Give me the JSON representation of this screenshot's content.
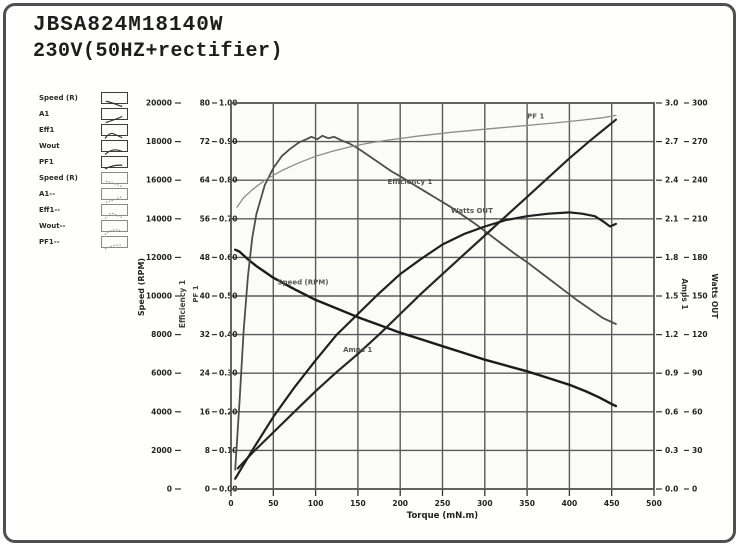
{
  "window": {
    "title_line1": "JBSA824M18140W",
    "title_line2": "230V(50HZ+rectifier)",
    "border_color": "#4f4f4f"
  },
  "legend": {
    "items": [
      {
        "label": "Speed (R)",
        "icon": "speed-curve-thumbnail",
        "dashed": false
      },
      {
        "label": "A1",
        "icon": "amps-curve-thumbnail",
        "dashed": false
      },
      {
        "label": "Eff1",
        "icon": "eff-curve-thumbnail",
        "dashed": false
      },
      {
        "label": "Wout",
        "icon": "watts-curve-thumbnail",
        "dashed": false
      },
      {
        "label": "PF1",
        "icon": "pf-curve-thumbnail",
        "dashed": false
      },
      {
        "label": "Speed (R)",
        "icon": "speed-curve-thumbnail",
        "dashed": true
      },
      {
        "label": "A1--",
        "icon": "amps-curve-thumbnail",
        "dashed": true
      },
      {
        "label": "Eff1--",
        "icon": "eff-curve-thumbnail",
        "dashed": true
      },
      {
        "label": "Wout--",
        "icon": "watts-curve-thumbnail",
        "dashed": true
      },
      {
        "label": "PF1--",
        "icon": "pf-curve-thumbnail",
        "dashed": true
      }
    ]
  },
  "chart_data": {
    "type": "line",
    "title": "",
    "xlabel": "Torque (mN.m)",
    "grid": true,
    "x_range": [
      0,
      500
    ],
    "x_ticks": [
      "0",
      "50",
      "100",
      "150",
      "200",
      "250",
      "300",
      "350",
      "400",
      "450",
      "500"
    ],
    "grid_color": "#5a5a5a",
    "plot_bg": "#fbfbf8",
    "axes": {
      "speed": {
        "title": "Speed (RPM)",
        "range": [
          0,
          20000
        ],
        "ticks": [
          "20000",
          "18000",
          "16000",
          "14000",
          "12000",
          "10000",
          "8000",
          "6000",
          "4000",
          "2000",
          "0"
        ]
      },
      "eff": {
        "title": "Efficiency 1",
        "range": [
          0,
          80
        ],
        "ticks": [
          "80",
          "72",
          "64",
          "56",
          "48",
          "40",
          "32",
          "24",
          "16",
          "8",
          "0"
        ]
      },
      "pf": {
        "title": "PF 1",
        "range": [
          0,
          1
        ],
        "ticks": [
          "1.00",
          "0.90",
          "0.80",
          "0.70",
          "0.60",
          "0.50",
          "0.40",
          "0.30",
          "0.20",
          "0.10",
          "0.00"
        ]
      },
      "amps": {
        "title": "Amps 1",
        "range": [
          0,
          3
        ],
        "ticks": [
          "3.0",
          "2.7",
          "2.4",
          "2.1",
          "1.8",
          "1.5",
          "1.2",
          "0.9",
          "0.6",
          "0.3",
          "0.0"
        ]
      },
      "watts": {
        "title": "Watts OUT",
        "range": [
          0,
          300
        ],
        "ticks": [
          "300",
          "270",
          "240",
          "210",
          "180",
          "150",
          "120",
          "90",
          "60",
          "30",
          "0"
        ]
      }
    },
    "series": [
      {
        "name": "Speed (RPM)",
        "axis": "speed",
        "color": "#1b1b1b",
        "width": 2.4,
        "x": [
          5,
          10,
          20,
          30,
          40,
          50,
          75,
          100,
          125,
          150,
          175,
          200,
          225,
          250,
          275,
          300,
          325,
          350,
          375,
          400,
          420,
          435,
          450,
          455
        ],
        "y": [
          12400,
          12300,
          11900,
          11550,
          11250,
          10950,
          10350,
          9800,
          9350,
          8900,
          8500,
          8100,
          7750,
          7400,
          7050,
          6700,
          6400,
          6100,
          5750,
          5400,
          5050,
          4750,
          4400,
          4300
        ]
      },
      {
        "name": "Efficiency 1",
        "axis": "eff",
        "color": "#4d4d4d",
        "width": 1.8,
        "x": [
          5,
          10,
          15,
          20,
          25,
          30,
          40,
          50,
          60,
          70,
          80,
          88,
          95,
          102,
          108,
          115,
          122,
          130,
          140,
          150,
          160,
          170,
          180,
          190,
          200,
          215,
          230,
          245,
          260,
          275,
          290,
          305,
          320,
          335,
          350,
          365,
          380,
          395,
          410,
          425,
          440,
          455
        ],
        "y": [
          4,
          18,
          33,
          44,
          52,
          57,
          63,
          66.5,
          69,
          70.5,
          71.8,
          72.4,
          73.0,
          72.5,
          73.2,
          72.7,
          73.0,
          72.3,
          71.6,
          70.6,
          69.4,
          68.2,
          67.0,
          65.8,
          64.8,
          63.2,
          61.6,
          60.0,
          58.4,
          56.6,
          54.8,
          52.8,
          50.8,
          48.8,
          47.0,
          45.0,
          43.0,
          41.0,
          39.0,
          37.2,
          35.4,
          34.2
        ]
      },
      {
        "name": "PF 1",
        "axis": "pf",
        "color": "#8c8c8c",
        "width": 1.3,
        "x": [
          7,
          15,
          25,
          40,
          60,
          80,
          100,
          120,
          140,
          160,
          180,
          200,
          220,
          240,
          260,
          280,
          300,
          320,
          340,
          360,
          380,
          400,
          420,
          440,
          455
        ],
        "y": [
          0.73,
          0.755,
          0.775,
          0.8,
          0.825,
          0.845,
          0.862,
          0.875,
          0.886,
          0.895,
          0.902,
          0.908,
          0.914,
          0.919,
          0.924,
          0.928,
          0.932,
          0.936,
          0.94,
          0.944,
          0.948,
          0.952,
          0.957,
          0.962,
          0.968
        ]
      },
      {
        "name": "Amps 1",
        "axis": "amps",
        "color": "#262626",
        "width": 2.2,
        "x": [
          8,
          25,
          50,
          75,
          100,
          125,
          150,
          175,
          200,
          225,
          250,
          275,
          300,
          325,
          350,
          375,
          400,
          425,
          440,
          455
        ],
        "y": [
          0.16,
          0.28,
          0.44,
          0.6,
          0.76,
          0.91,
          1.05,
          1.2,
          1.36,
          1.52,
          1.67,
          1.82,
          1.97,
          2.12,
          2.27,
          2.42,
          2.57,
          2.71,
          2.79,
          2.87
        ]
      },
      {
        "name": "Watts OUT",
        "axis": "watts",
        "color": "#202020",
        "width": 2.2,
        "x": [
          5,
          25,
          50,
          75,
          100,
          125,
          150,
          175,
          200,
          225,
          250,
          275,
          300,
          325,
          350,
          375,
          400,
          415,
          430,
          440,
          448,
          455
        ],
        "y": [
          8,
          30,
          56,
          79,
          100,
          120,
          136,
          152,
          167,
          179,
          190,
          198,
          204,
          209,
          212,
          214,
          215,
          214,
          212,
          208,
          204,
          206
        ]
      }
    ],
    "curve_labels": [
      {
        "text": "Speed (RPM)",
        "x_pct": 11,
        "y_pct": 47
      },
      {
        "text": "Efficiency 1",
        "x_pct": 37,
        "y_pct": 21
      },
      {
        "text": "Watts OUT",
        "x_pct": 52,
        "y_pct": 28.5
      },
      {
        "text": "PF 1",
        "x_pct": 70,
        "y_pct": 4
      },
      {
        "text": "Amps 1",
        "x_pct": 26.5,
        "y_pct": 64.5
      }
    ]
  }
}
